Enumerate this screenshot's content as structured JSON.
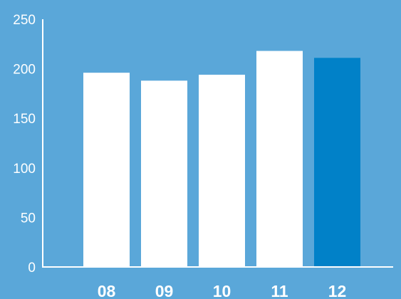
{
  "chart_data": {
    "type": "bar",
    "title": "",
    "xlabel": "",
    "ylabel": "",
    "categories": [
      "08",
      "09",
      "10",
      "11",
      "12"
    ],
    "values": [
      196,
      188,
      194,
      218,
      211
    ],
    "highlight_index": 4,
    "ylim": [
      0,
      250
    ],
    "yticks": [
      0,
      50,
      100,
      150,
      200,
      250
    ],
    "grid": false,
    "colors": {
      "background": "#5aa7d9",
      "bar": "#ffffff",
      "highlight_bar": "#0181c8",
      "text": "#ffffff",
      "axis": "#ffffff"
    }
  }
}
